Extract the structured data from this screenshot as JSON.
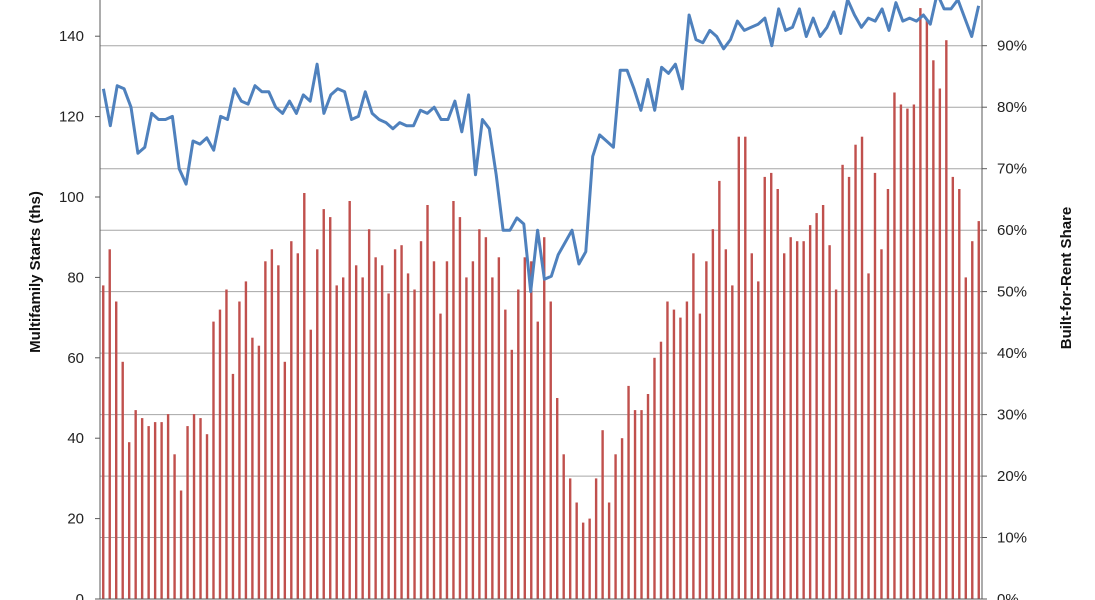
{
  "chart_data": {
    "type": "bar",
    "ylabel": "Multifamily Starts (ths)",
    "y2label": "Built-for-Rent Share",
    "ylim": [
      0,
      150
    ],
    "y2lim": [
      0,
      0.95
    ],
    "yticks": [
      "0",
      "20",
      "40",
      "60",
      "80",
      "100",
      "120",
      "140"
    ],
    "y2ticks": [
      "0%",
      "10%",
      "20%",
      "30%",
      "40%",
      "50%",
      "60%",
      "70%",
      "80%",
      "90%"
    ],
    "grid": true,
    "colors": {
      "bars": "#c0504d",
      "line": "#4f81bd",
      "grid": "#a6a6a6",
      "axis": "#595959"
    },
    "series": [
      {
        "type": "bar",
        "axis": "left",
        "values": [
          78,
          87,
          74,
          59,
          39,
          47,
          45,
          43,
          44,
          44,
          46,
          36,
          27,
          43,
          46,
          45,
          41,
          69,
          72,
          77,
          56,
          74,
          79,
          65,
          63,
          84,
          87,
          83,
          59,
          89,
          86,
          101,
          67,
          87,
          97,
          95,
          78,
          80,
          99,
          83,
          80,
          92,
          85,
          83,
          76,
          87,
          88,
          81,
          77,
          89,
          98,
          84,
          71,
          84,
          99,
          95,
          80,
          84,
          92,
          90,
          80,
          85,
          72,
          62,
          77,
          85,
          84,
          69,
          90,
          74,
          50,
          36,
          30,
          24,
          19,
          20,
          30,
          42,
          24,
          36,
          40,
          53,
          47,
          47,
          51,
          60,
          64,
          74,
          72,
          70,
          74,
          86,
          71,
          84,
          92,
          104,
          87,
          78,
          115,
          115,
          86,
          79,
          105,
          106,
          102,
          86,
          90,
          89,
          89,
          93,
          96,
          98,
          88,
          77,
          108,
          105,
          113,
          115,
          81,
          106,
          87,
          102,
          126,
          123,
          122,
          123,
          147,
          144,
          134,
          127,
          139,
          105,
          102,
          80,
          89,
          94
        ]
      },
      {
        "type": "line",
        "axis": "right",
        "values": [
          0.83,
          0.77,
          0.835,
          0.83,
          0.8,
          0.725,
          0.735,
          0.79,
          0.78,
          0.78,
          0.785,
          0.7,
          0.675,
          0.745,
          0.74,
          0.75,
          0.73,
          0.785,
          0.78,
          0.83,
          0.81,
          0.805,
          0.835,
          0.825,
          0.825,
          0.8,
          0.79,
          0.81,
          0.79,
          0.82,
          0.81,
          0.87,
          0.79,
          0.82,
          0.83,
          0.825,
          0.78,
          0.785,
          0.825,
          0.79,
          0.78,
          0.775,
          0.765,
          0.775,
          0.77,
          0.77,
          0.795,
          0.79,
          0.8,
          0.78,
          0.78,
          0.81,
          0.76,
          0.82,
          0.69,
          0.78,
          0.765,
          0.69,
          0.6,
          0.6,
          0.62,
          0.61,
          0.5,
          0.6,
          0.52,
          0.525,
          0.56,
          0.58,
          0.6,
          0.545,
          0.565,
          0.72,
          0.755,
          0.745,
          0.735,
          0.86,
          0.86,
          0.83,
          0.795,
          0.845,
          0.795,
          0.865,
          0.855,
          0.87,
          0.83,
          0.95,
          0.91,
          0.905,
          0.925,
          0.915,
          0.895,
          0.91,
          0.94,
          0.925,
          0.93,
          0.935,
          0.945,
          0.9,
          0.96,
          0.925,
          0.93,
          0.96,
          0.915,
          0.945,
          0.915,
          0.93,
          0.955,
          0.92,
          0.975,
          0.95,
          0.93,
          0.945,
          0.94,
          0.96,
          0.925,
          0.97,
          0.94,
          0.945,
          0.94,
          0.95,
          0.935,
          0.985,
          0.96,
          0.96,
          0.975,
          0.945,
          0.915,
          0.965
        ]
      }
    ]
  }
}
